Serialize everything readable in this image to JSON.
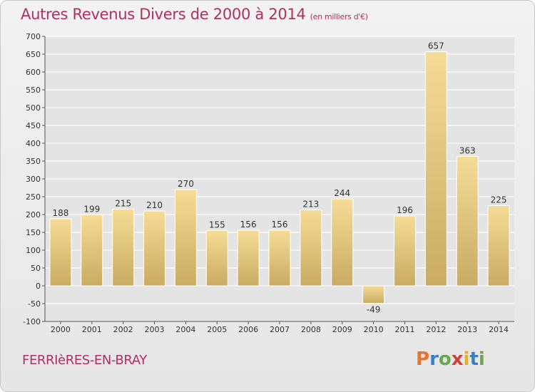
{
  "title": "Autres Revenus Divers de 2000 à 2014",
  "subtitle": "(en milliers d'€)",
  "commune": "FERRIèRES-EN-BRAY",
  "logo": {
    "letters": [
      "P",
      "r",
      "o",
      "x",
      "i",
      "t",
      "i"
    ],
    "colors": [
      "#e8732a",
      "#3a7fc4",
      "#6aa84f",
      "#d43f3a",
      "#e8b020",
      "#3a7fc4",
      "#6aa84f"
    ]
  },
  "chart_data": {
    "type": "bar",
    "categories": [
      "2000",
      "2001",
      "2002",
      "2003",
      "2004",
      "2005",
      "2006",
      "2007",
      "2008",
      "2009",
      "2010",
      "2011",
      "2012",
      "2013",
      "2014"
    ],
    "values": [
      188,
      199,
      215,
      210,
      270,
      155,
      156,
      156,
      213,
      244,
      -49,
      196,
      657,
      363,
      225
    ],
    "ylim": [
      -100,
      700
    ],
    "yticks": [
      -100,
      -50,
      0,
      50,
      100,
      150,
      200,
      250,
      300,
      350,
      400,
      450,
      500,
      550,
      600,
      650,
      700
    ],
    "grid": true,
    "colors": {
      "bar_light": "#f5dc96",
      "bar_dark": "#c9ab62",
      "grid": "#ffffff"
    }
  }
}
